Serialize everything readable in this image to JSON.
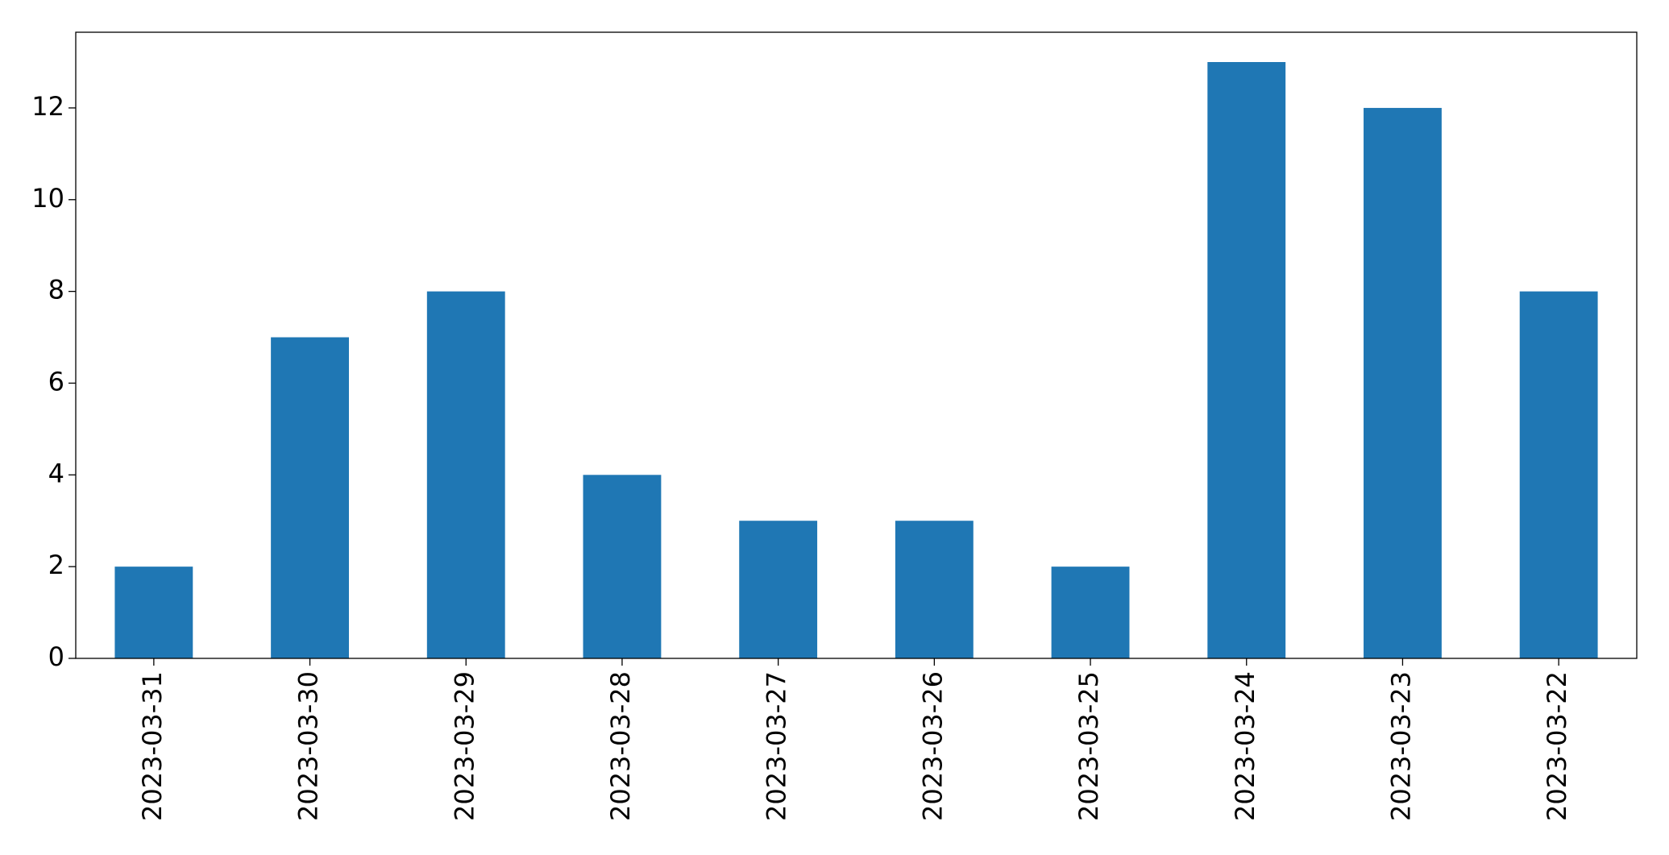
{
  "chart_data": {
    "type": "bar",
    "categories": [
      "2023-03-31",
      "2023-03-30",
      "2023-03-29",
      "2023-03-28",
      "2023-03-27",
      "2023-03-26",
      "2023-03-25",
      "2023-03-24",
      "2023-03-23",
      "2023-03-22"
    ],
    "values": [
      2,
      7,
      8,
      4,
      3,
      3,
      2,
      13,
      12,
      8
    ],
    "color": "#1f77b4",
    "ylim": [
      0,
      13.65
    ],
    "yticks": [
      0,
      2,
      4,
      6,
      8,
      10,
      12
    ],
    "grid": false
  }
}
